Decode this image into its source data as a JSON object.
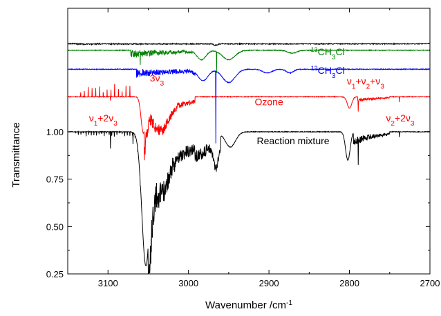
{
  "chart_data": {
    "type": "line",
    "xlabel": "Wavenumber /cm",
    "xlabel_superscript": "-1",
    "ylabel": "Transmittance",
    "x_range": [
      3150,
      2700
    ],
    "x_reversed": true,
    "y_range": [
      0.25,
      1.0
    ],
    "x_ticks": [
      3100,
      3000,
      2900,
      2800,
      2700
    ],
    "x_tick_labels": [
      "3100",
      "3000",
      "2900",
      "2800",
      "2700"
    ],
    "y_ticks": [
      0.25,
      0.5,
      0.75,
      1.0
    ],
    "y_tick_labels": [
      "0.25",
      "0.50",
      "0.75",
      "1.00"
    ],
    "grid": false,
    "legend": "none",
    "series": [
      {
        "label_parts": [
          [
            "",
            "Reaction mixture"
          ]
        ],
        "color": "#000000",
        "baseline": 1.0,
        "features": [
          {
            "type": "lines",
            "from": 3140,
            "to": 3060,
            "step": 3.2,
            "amp": 0.02
          },
          {
            "type": "line",
            "x": 3097,
            "depth": 0.09
          },
          {
            "type": "line",
            "x": 3069,
            "depth": 0.06
          },
          {
            "type": "band",
            "center": 3053,
            "width": 7,
            "depth": 0.7
          },
          {
            "type": "dense",
            "from": 3050,
            "to": 2992,
            "step": 1.6,
            "base": 0.2,
            "amp": 0.18,
            "decay": 48
          },
          {
            "type": "band",
            "center": 3033,
            "width": 12,
            "depth": 0.12
          },
          {
            "type": "dense",
            "from": 2992,
            "to": 2960,
            "step": 1.2,
            "base": 0.1,
            "amp": 0.08,
            "decay": 40
          },
          {
            "type": "band",
            "center": 2966,
            "width": 4,
            "depth": 0.12
          },
          {
            "type": "band",
            "center": 2948,
            "width": 9,
            "depth": 0.08
          },
          {
            "type": "band",
            "center": 2802,
            "width": 4,
            "depth": 0.15
          },
          {
            "type": "line",
            "x": 2789,
            "depth": 0.13
          },
          {
            "type": "dense",
            "from": 2795,
            "to": 2750,
            "step": 2.5,
            "base": 0.03,
            "amp": 0.05,
            "decay": 30
          },
          {
            "type": "line",
            "x": 2738,
            "depth": 0.03
          }
        ]
      },
      {
        "label_parts": [
          [
            "",
            "Ozone"
          ]
        ],
        "color": "#ff0000",
        "baseline": 1.185,
        "features": [
          {
            "type": "spikes",
            "from": 3134,
            "to": 3072,
            "step": 4.7,
            "amp": 0.045
          },
          {
            "type": "line",
            "x": 3097,
            "depth": 0.02
          },
          {
            "type": "band",
            "center": 3056,
            "width": 4,
            "depth": 0.19
          },
          {
            "type": "dense",
            "from": 3055,
            "to": 2992,
            "step": 1.6,
            "base": 0.08,
            "amp": 0.1,
            "decay": 40
          },
          {
            "type": "band",
            "center": 3033,
            "width": 12,
            "depth": 0.1
          },
          {
            "type": "band",
            "center": 2800,
            "width": 4,
            "depth": 0.06
          },
          {
            "type": "line",
            "x": 2789,
            "depth": 0.06
          },
          {
            "type": "dense",
            "from": 2790,
            "to": 2750,
            "step": 3,
            "base": 0.01,
            "amp": 0.02,
            "decay": 30
          },
          {
            "type": "line",
            "x": 2738,
            "depth": 0.03
          }
        ]
      },
      {
        "label_parts": [
          [
            "sup",
            "12"
          ],
          [
            "",
            "CH"
          ],
          [
            "sub",
            "3"
          ],
          [
            "",
            "Cl"
          ]
        ],
        "color": "#0000ff",
        "baseline": 1.33,
        "features": [
          {
            "type": "dense",
            "from": 3065,
            "to": 2992,
            "step": 6.9,
            "base": 0.0,
            "amp": 0.045,
            "decay": 80
          },
          {
            "type": "band",
            "center": 2982,
            "width": 9,
            "depth": 0.06
          },
          {
            "type": "line",
            "x": 2966,
            "depth": 0.38
          },
          {
            "type": "band",
            "center": 2950,
            "width": 11,
            "depth": 0.07
          },
          {
            "type": "band",
            "center": 2902,
            "width": 8,
            "depth": 0.02
          },
          {
            "type": "band",
            "center": 2874,
            "width": 6,
            "depth": 0.02
          }
        ]
      },
      {
        "label_parts": [
          [
            "sup",
            "13"
          ],
          [
            "",
            "CH"
          ],
          [
            "sub",
            "3"
          ],
          [
            "",
            "Cl"
          ]
        ],
        "color": "#008000",
        "baseline": 1.43,
        "features": [
          {
            "type": "dense",
            "from": 3072,
            "to": 2995,
            "step": 6.9,
            "base": 0.0,
            "amp": 0.04,
            "decay": 80
          },
          {
            "type": "line",
            "x": 3060,
            "depth": 0.06
          },
          {
            "type": "band",
            "center": 2984,
            "width": 8,
            "depth": 0.05
          },
          {
            "type": "line",
            "x": 2965,
            "depth": 0.11
          },
          {
            "type": "band",
            "center": 2950,
            "width": 11,
            "depth": 0.05
          },
          {
            "type": "band",
            "center": 2871,
            "width": 8,
            "depth": 0.015
          }
        ]
      },
      {
        "label_parts": [],
        "color": "#000000",
        "baseline": 1.465,
        "features": [
          {
            "type": "dense",
            "from": 3140,
            "to": 2712,
            "step": 9,
            "base": 0.0,
            "amp": 0.004,
            "decay": 500
          },
          {
            "type": "band",
            "center": 2966,
            "width": 3,
            "depth": 0.008
          }
        ]
      }
    ],
    "annotations": [
      {
        "parts": [
          [
            "",
            "Reaction mixture"
          ]
        ],
        "color": "#000000",
        "x": 2870,
        "y": 0.935,
        "anchor": "middle"
      },
      {
        "parts": [
          [
            "",
            "Ozone"
          ]
        ],
        "color": "#ff0000",
        "x": 2900,
        "y": 1.14,
        "anchor": "middle"
      },
      {
        "parts": [
          [
            "sup",
            "12"
          ],
          [
            "",
            "CH"
          ],
          [
            "sub",
            "3"
          ],
          [
            "",
            "Cl"
          ]
        ],
        "color": "#0000ff",
        "x": 2848,
        "y": 1.305,
        "anchor": "start"
      },
      {
        "parts": [
          [
            "sup",
            "13"
          ],
          [
            "",
            "CH"
          ],
          [
            "sub",
            "3"
          ],
          [
            "",
            "Cl"
          ]
        ],
        "color": "#008000",
        "x": 2848,
        "y": 1.405,
        "anchor": "start"
      },
      {
        "parts": [
          [
            "",
            "3ν"
          ],
          [
            "sub",
            "3"
          ]
        ],
        "color": "#ff0000",
        "x": 3048,
        "y": 1.265,
        "anchor": "start"
      },
      {
        "parts": [
          [
            "",
            "ν"
          ],
          [
            "sub",
            "1"
          ],
          [
            "",
            "+2ν"
          ],
          [
            "sub",
            "3"
          ]
        ],
        "color": "#ff0000",
        "x": 3106,
        "y": 1.055,
        "anchor": "middle"
      },
      {
        "parts": [
          [
            "",
            "ν"
          ],
          [
            "sub",
            "1"
          ],
          [
            "",
            "+ν"
          ],
          [
            "sub",
            "2"
          ],
          [
            "",
            "+ν"
          ],
          [
            "sub",
            "3"
          ]
        ],
        "color": "#ff0000",
        "x": 2780,
        "y": 1.25,
        "anchor": "middle"
      },
      {
        "parts": [
          [
            "",
            "ν"
          ],
          [
            "sub",
            "2"
          ],
          [
            "",
            "+2ν"
          ],
          [
            "sub",
            "3"
          ]
        ],
        "color": "#ff0000",
        "x": 2737,
        "y": 1.055,
        "anchor": "middle"
      }
    ]
  }
}
